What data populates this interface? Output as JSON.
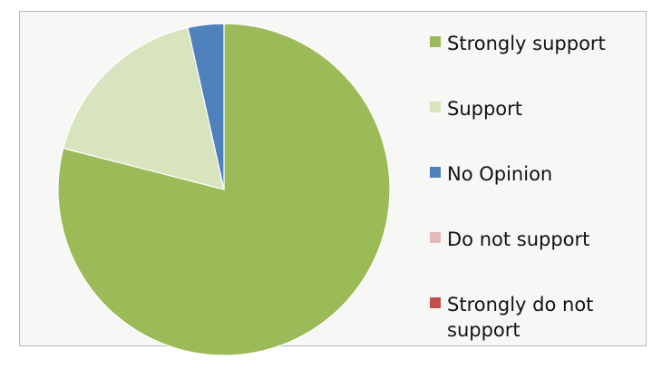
{
  "chart_data": {
    "type": "pie",
    "title": "",
    "categories": [
      "Strongly support",
      "Support",
      "No Opinion",
      "Do not support",
      "Strongly do not support"
    ],
    "values": [
      79,
      17.5,
      3.5,
      0,
      0
    ],
    "colors": [
      "#9bbb59",
      "#d7e4bd",
      "#4f81bd",
      "#e6b9b8",
      "#c0504d"
    ],
    "legend_position": "right",
    "start_angle": "top",
    "direction": "clockwise"
  },
  "legend": {
    "items": [
      {
        "label": "Strongly support",
        "color": "#9bbb59"
      },
      {
        "label": "Support",
        "color": "#d7e4bd"
      },
      {
        "label": "No Opinion",
        "color": "#4f81bd"
      },
      {
        "label": "Do not support",
        "color": "#e6b9b8"
      },
      {
        "label": "Strongly do not support",
        "color": "#c0504d"
      }
    ]
  }
}
